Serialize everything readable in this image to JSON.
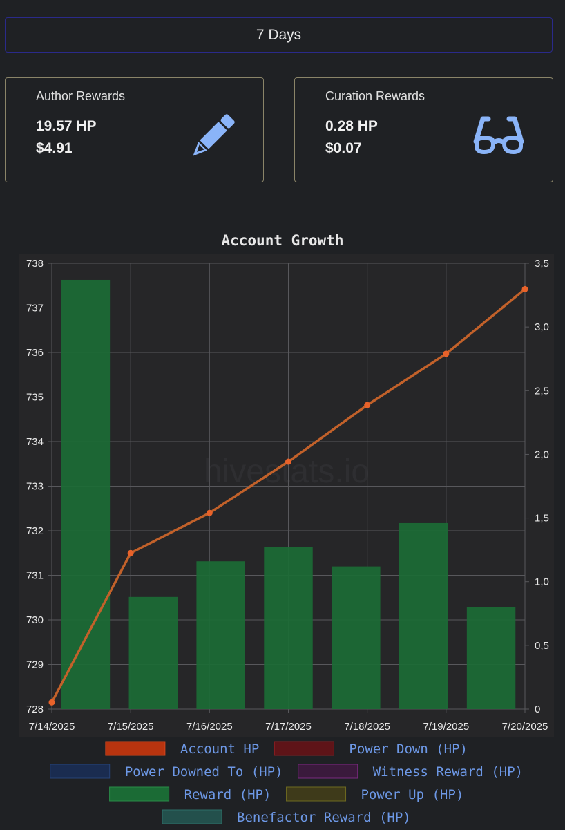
{
  "period": {
    "label": "7 Days"
  },
  "author_card": {
    "title": "Author Rewards",
    "hp": "19.57 HP",
    "usd": "$4.91",
    "icon": "pencil-icon"
  },
  "curation_card": {
    "title": "Curation Rewards",
    "hp": "0.28 HP",
    "usd": "$0.07",
    "icon": "glasses-icon"
  },
  "colors": {
    "icon": "#8ab4f8",
    "line": "#c2612a",
    "point": "#e8622a",
    "bar": "#1b6b35",
    "legend_text": "#6d98e6"
  },
  "chart_data": {
    "type": "bar",
    "title": "Account Growth",
    "watermark": "hivestats.io",
    "categories": [
      "7/14/2025",
      "7/15/2025",
      "7/16/2025",
      "7/17/2025",
      "7/18/2025",
      "7/19/2025",
      "7/20/2025"
    ],
    "left_axis": {
      "min": 728,
      "max": 738,
      "ticks": [
        "738",
        "737",
        "736",
        "735",
        "734",
        "733",
        "732",
        "731",
        "730",
        "729",
        "728"
      ]
    },
    "right_axis": {
      "min": 0,
      "max": 3.5,
      "ticks": [
        "3,5",
        "3,0",
        "2,5",
        "2,0",
        "1,5",
        "1,0",
        "0,5",
        "0"
      ]
    },
    "grid": true,
    "series": [
      {
        "name": "Account HP",
        "type": "line",
        "axis": "left",
        "values": [
          728.15,
          731.5,
          732.4,
          733.55,
          734.82,
          735.97,
          737.42
        ]
      },
      {
        "name": "Reward (HP)",
        "type": "bar",
        "axis": "right",
        "values": [
          3.37,
          0.88,
          1.16,
          1.27,
          1.12,
          1.46,
          0.8
        ]
      }
    ],
    "legend": {
      "position": "bottom",
      "items": [
        {
          "label": "Account HP",
          "fill": "#b8340f",
          "stroke": "#d2461d"
        },
        {
          "label": "Power Down (HP)",
          "fill": "#5e1418",
          "stroke": "#8a1e22"
        },
        {
          "label": "Power Downed To (HP)",
          "fill": "#1a2c50",
          "stroke": "#274478"
        },
        {
          "label": "Witness Reward (HP)",
          "fill": "#3a1a3c",
          "stroke": "#7a2a80"
        },
        {
          "label": "Reward (HP)",
          "fill": "#1b6b35",
          "stroke": "#2a8c48"
        },
        {
          "label": "Power Up (HP)",
          "fill": "#3e3a1a",
          "stroke": "#6e6a20"
        },
        {
          "label": "Benefactor Reward (HP)",
          "fill": "#23504c",
          "stroke": "#2e6e68"
        }
      ]
    }
  }
}
